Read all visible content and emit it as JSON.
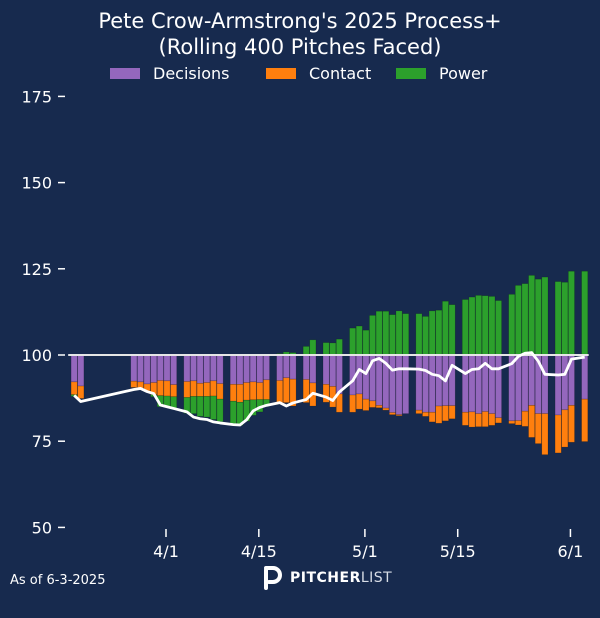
{
  "chart_data": {
    "type": "bar",
    "title": "Pete Crow-Armstrong's 2025 Process+",
    "subtitle": "(Rolling 400 Pitches Faced)",
    "xlabel": "",
    "ylabel": "",
    "ylim": [
      50,
      180
    ],
    "yticks": [
      50,
      75,
      100,
      125,
      150,
      175
    ],
    "xticks": [
      {
        "label": "4/1",
        "date": "2025-04-01"
      },
      {
        "label": "4/15",
        "date": "2025-04-15"
      },
      {
        "label": "5/1",
        "date": "2025-05-01"
      },
      {
        "label": "5/15",
        "date": "2025-05-15"
      },
      {
        "label": "6/1",
        "date": "2025-06-01"
      }
    ],
    "xrange": [
      "2025-03-18",
      "2025-06-03"
    ],
    "baseline": 100,
    "grid": false,
    "legend_position": "top-center",
    "legend": [
      {
        "name": "Decisions",
        "color": "#9467bd"
      },
      {
        "name": "Contact",
        "color": "#ff7f0e"
      },
      {
        "name": "Power",
        "color": "#2ca02c"
      }
    ],
    "line": {
      "name": "Process+",
      "color": "#ffffff"
    },
    "series_note": "Each bar stacks component deltas from the 100 baseline; negative values drawn below 100, positive above. Line is overall Process+.",
    "bars": [
      {
        "date": "2025-03-18",
        "decisions": -7.8,
        "contact": -3.7,
        "power": -0.5,
        "process": 88.3
      },
      {
        "date": "2025-03-19",
        "decisions": -9.0,
        "contact": -3.6,
        "power": 0,
        "process": 86.5
      },
      {
        "date": "2025-03-27",
        "decisions": -7.6,
        "contact": -1.8,
        "power": 0,
        "process": 90.0
      },
      {
        "date": "2025-03-28",
        "decisions": -7.8,
        "contact": -1.8,
        "power": 0,
        "process": 90.3
      },
      {
        "date": "2025-03-29",
        "decisions": -8.4,
        "contact": -2.0,
        "power": -0.3,
        "process": 89.4
      },
      {
        "date": "2025-03-30",
        "decisions": -8.0,
        "contact": -3.5,
        "power": -0.6,
        "process": 88.8
      },
      {
        "date": "2025-03-31",
        "decisions": -7.4,
        "contact": -4.4,
        "power": -3.2,
        "process": 85.5
      },
      {
        "date": "2025-04-01",
        "decisions": -7.5,
        "contact": -4.4,
        "power": -3.2,
        "process": 85.0
      },
      {
        "date": "2025-04-02",
        "decisions": -8.6,
        "contact": -3.5,
        "power": -3.5,
        "process": 84.5
      },
      {
        "date": "2025-04-04",
        "decisions": -7.7,
        "contact": -4.6,
        "power": -4.6,
        "process": 83.5
      },
      {
        "date": "2025-04-05",
        "decisions": -7.5,
        "contact": -4.5,
        "power": -5.0,
        "process": 82.0
      },
      {
        "date": "2025-04-06",
        "decisions": -8.2,
        "contact": -3.8,
        "power": -5.8,
        "process": 81.5
      },
      {
        "date": "2025-04-07",
        "decisions": -8.0,
        "contact": -4.0,
        "power": -6.0,
        "process": 81.3
      },
      {
        "date": "2025-04-08",
        "decisions": -7.5,
        "contact": -4.4,
        "power": -6.8,
        "process": 80.6
      },
      {
        "date": "2025-04-09",
        "decisions": -8.3,
        "contact": -4.5,
        "power": -6.5,
        "process": 80.3
      },
      {
        "date": "2025-04-11",
        "decisions": -8.5,
        "contact": -4.9,
        "power": -6.5,
        "process": 79.8
      },
      {
        "date": "2025-04-12",
        "decisions": -8.5,
        "contact": -5.2,
        "power": -6.7,
        "process": 79.7
      },
      {
        "date": "2025-04-13",
        "decisions": -8.0,
        "contact": -5.1,
        "power": -6.1,
        "process": 81.2
      },
      {
        "date": "2025-04-14",
        "decisions": -7.8,
        "contact": -5.2,
        "power": -4.5,
        "process": 83.8
      },
      {
        "date": "2025-04-15",
        "decisions": -8.0,
        "contact": -4.9,
        "power": -3.6,
        "process": 84.8
      },
      {
        "date": "2025-04-16",
        "decisions": -7.2,
        "contact": -5.7,
        "power": -1.7,
        "process": 85.4
      },
      {
        "date": "2025-04-18",
        "decisions": -7.4,
        "contact": -6.4,
        "power": 0.4,
        "process": 86.2
      },
      {
        "date": "2025-04-19",
        "decisions": -6.6,
        "contact": -7.2,
        "power": 0.9,
        "process": 85.2
      },
      {
        "date": "2025-04-20",
        "decisions": -7.0,
        "contact": -7.8,
        "power": 0.7,
        "process": 86.1
      },
      {
        "date": "2025-04-22",
        "decisions": -7.1,
        "contact": -6.7,
        "power": 2.5,
        "process": 87.1
      },
      {
        "date": "2025-04-23",
        "decisions": -8.1,
        "contact": -6.7,
        "power": 4.4,
        "process": 88.9
      },
      {
        "date": "2025-04-25",
        "decisions": -8.5,
        "contact": -5.2,
        "power": 3.6,
        "process": 87.8
      },
      {
        "date": "2025-04-26",
        "decisions": -9.1,
        "contact": -6.0,
        "power": 3.5,
        "process": 86.8
      },
      {
        "date": "2025-04-27",
        "decisions": -11.3,
        "contact": -5.3,
        "power": 4.6,
        "process": 89.3
      },
      {
        "date": "2025-04-29",
        "decisions": -11.6,
        "contact": -5.0,
        "power": 7.8,
        "process": 92.5
      },
      {
        "date": "2025-04-30",
        "decisions": -11.3,
        "contact": -4.4,
        "power": 8.4,
        "process": 95.8
      },
      {
        "date": "2025-05-01",
        "decisions": -12.8,
        "contact": -3.3,
        "power": 7.2,
        "process": 94.6
      },
      {
        "date": "2025-05-02",
        "decisions": -13.3,
        "contact": -1.9,
        "power": 11.5,
        "process": 98.3
      },
      {
        "date": "2025-05-03",
        "decisions": -14.6,
        "contact": -0.7,
        "power": 12.7,
        "process": 99.0
      },
      {
        "date": "2025-05-04",
        "decisions": -15.4,
        "contact": -0.6,
        "power": 12.7,
        "process": 97.6
      },
      {
        "date": "2025-05-05",
        "decisions": -16.7,
        "contact": -0.6,
        "power": 11.7,
        "process": 95.6
      },
      {
        "date": "2025-05-06",
        "decisions": -17.3,
        "contact": -0.3,
        "power": 12.8,
        "process": 96.0
      },
      {
        "date": "2025-05-07",
        "decisions": -17.0,
        "contact": 0,
        "power": 12.0,
        "process": 96.0
      },
      {
        "date": "2025-05-09",
        "decisions": -16.0,
        "contact": -1.0,
        "power": 12.0,
        "process": 95.9
      },
      {
        "date": "2025-05-10",
        "decisions": -16.6,
        "contact": -1.2,
        "power": 11.2,
        "process": 95.5
      },
      {
        "date": "2025-05-11",
        "decisions": -16.6,
        "contact": -2.8,
        "power": 12.8,
        "process": 94.4
      },
      {
        "date": "2025-05-12",
        "decisions": -14.8,
        "contact": -5.0,
        "power": 13.0,
        "process": 94.0
      },
      {
        "date": "2025-05-13",
        "decisions": -14.7,
        "contact": -4.4,
        "power": 15.6,
        "process": 92.5
      },
      {
        "date": "2025-05-14",
        "decisions": -14.7,
        "contact": -3.8,
        "power": 14.6,
        "process": 97.0
      },
      {
        "date": "2025-05-16",
        "decisions": -16.6,
        "contact": -3.8,
        "power": 16.1,
        "process": 94.6
      },
      {
        "date": "2025-05-17",
        "decisions": -16.5,
        "contact": -4.4,
        "power": 16.8,
        "process": 95.8
      },
      {
        "date": "2025-05-18",
        "decisions": -17.0,
        "contact": -3.8,
        "power": 17.3,
        "process": 96.0
      },
      {
        "date": "2025-05-19",
        "decisions": -16.4,
        "contact": -4.4,
        "power": 17.2,
        "process": 97.6
      },
      {
        "date": "2025-05-20",
        "decisions": -17.0,
        "contact": -3.4,
        "power": 17.0,
        "process": 96.0
      },
      {
        "date": "2025-05-21",
        "decisions": -18.2,
        "contact": -1.5,
        "power": 15.8,
        "process": 96.0
      },
      {
        "date": "2025-05-23",
        "decisions": -19.1,
        "contact": -0.8,
        "power": 17.6,
        "process": 97.5
      },
      {
        "date": "2025-05-24",
        "decisions": -19.0,
        "contact": -1.3,
        "power": 20.2,
        "process": 99.6
      },
      {
        "date": "2025-05-25",
        "decisions": -16.3,
        "contact": -4.4,
        "power": 20.7,
        "process": 100.5
      },
      {
        "date": "2025-05-26",
        "decisions": -14.6,
        "contact": -9.3,
        "power": 23.1,
        "process": 100.7
      },
      {
        "date": "2025-05-27",
        "decisions": -17.0,
        "contact": -8.7,
        "power": 22.0,
        "process": 98.2
      },
      {
        "date": "2025-05-28",
        "decisions": -17.0,
        "contact": -11.9,
        "power": 22.6,
        "process": 94.4
      },
      {
        "date": "2025-05-30",
        "decisions": -17.4,
        "contact": -11.0,
        "power": 21.3,
        "process": 94.2
      },
      {
        "date": "2025-05-31",
        "decisions": -15.9,
        "contact": -10.8,
        "power": 21.1,
        "process": 94.4
      },
      {
        "date": "2025-06-01",
        "decisions": -14.6,
        "contact": -10.7,
        "power": 24.3,
        "process": 98.8
      },
      {
        "date": "2025-06-03",
        "decisions": -12.8,
        "contact": -12.3,
        "power": 24.3,
        "process": 99.4
      }
    ]
  },
  "footer": {
    "as_of": "As of 6-3-2025",
    "logo_bold": "PITCHER",
    "logo_light": "LIST"
  }
}
